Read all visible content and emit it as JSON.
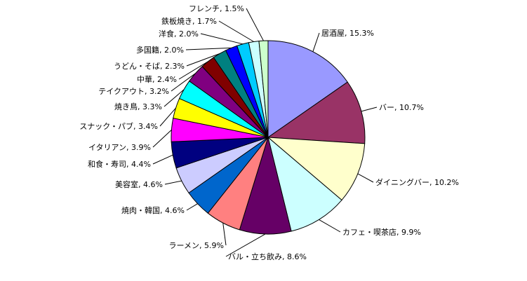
{
  "chart_data": {
    "type": "pie",
    "title": "",
    "start": "12 o'clock",
    "direction": "clockwise",
    "slices": [
      {
        "label": "居酒屋",
        "value": 15.3,
        "display": "居酒屋, 15.3%",
        "color": "#9999FF"
      },
      {
        "label": "バー",
        "value": 10.7,
        "display": "バー, 10.7%",
        "color": "#993366"
      },
      {
        "label": "ダイニングバー",
        "value": 10.2,
        "display": "ダイニングバー, 10.2%",
        "color": "#FFFFCC"
      },
      {
        "label": "カフェ・喫茶店",
        "value": 9.9,
        "display": "カフェ・喫茶店, 9.9%",
        "color": "#CCFFFF"
      },
      {
        "label": "バル・立ち飲み",
        "value": 8.6,
        "display": "バル・立ち飲み, 8.6%",
        "color": "#660066"
      },
      {
        "label": "ラーメン",
        "value": 5.9,
        "display": "ラーメン, 5.9%",
        "color": "#FF8080"
      },
      {
        "label": "焼肉・韓国",
        "value": 4.6,
        "display": "焼肉・韓国, 4.6%",
        "color": "#0066CC"
      },
      {
        "label": "美容室",
        "value": 4.6,
        "display": "美容室, 4.6%",
        "color": "#CCCCFF"
      },
      {
        "label": "和食・寿司",
        "value": 4.4,
        "display": "和食・寿司, 4.4%",
        "color": "#000080"
      },
      {
        "label": "イタリアン",
        "value": 3.9,
        "display": "イタリアン, 3.9%",
        "color": "#FF00FF"
      },
      {
        "label": "スナック・パブ",
        "value": 3.4,
        "display": "スナック・パブ, 3.4%",
        "color": "#FFFF00"
      },
      {
        "label": "焼き鳥",
        "value": 3.3,
        "display": "焼き鳥, 3.3%",
        "color": "#00FFFF"
      },
      {
        "label": "テイクアウト",
        "value": 3.2,
        "display": "テイクアウト, 3.2%",
        "color": "#800080"
      },
      {
        "label": "中華",
        "value": 2.4,
        "display": "中華, 2.4%",
        "color": "#800000"
      },
      {
        "label": "うどん・そば",
        "value": 2.3,
        "display": "うどん・そば, 2.3%",
        "color": "#008080"
      },
      {
        "label": "多国籍",
        "value": 2.0,
        "display": "多国籍, 2.0%",
        "color": "#0000FF"
      },
      {
        "label": "洋食",
        "value": 2.0,
        "display": "洋食, 2.0%",
        "color": "#00CCFF"
      },
      {
        "label": "鉄板焼き",
        "value": 1.7,
        "display": "鉄板焼き, 1.7%",
        "color": "#CCFFFF"
      },
      {
        "label": "フレンチ",
        "value": 1.5,
        "display": "フレンチ, 1.5%",
        "color": "#CCFFCC"
      }
    ]
  }
}
